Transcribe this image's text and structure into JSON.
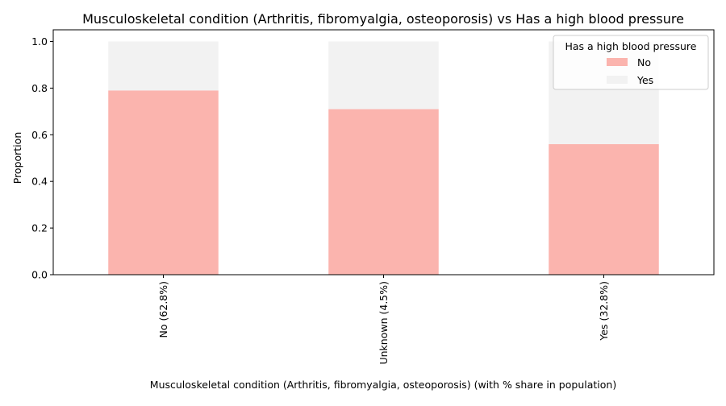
{
  "chart_data": {
    "type": "bar",
    "stacked": true,
    "title": "Musculoskeletal condition (Arthritis, fibromyalgia, osteoporosis) vs Has a high blood pressure",
    "xlabel": "Musculoskeletal condition (Arthritis, fibromyalgia, osteoporosis) (with % share in population)",
    "ylabel": "Proportion",
    "categories": [
      "No (62.8%)",
      "Unknown (4.5%)",
      "Yes (32.8%)"
    ],
    "ylim": [
      0,
      1.05
    ],
    "yticks": [
      "0.0",
      "0.2",
      "0.4",
      "0.6",
      "0.8",
      "1.0"
    ],
    "legend": {
      "title": "Has a high blood pressure",
      "placement": "top-right"
    },
    "series": [
      {
        "name": "No",
        "color": "#fbb4ae",
        "values": [
          0.79,
          0.71,
          0.56
        ]
      },
      {
        "name": "Yes",
        "color": "#f2f2f2",
        "values": [
          0.21,
          0.29,
          0.44
        ]
      }
    ]
  }
}
